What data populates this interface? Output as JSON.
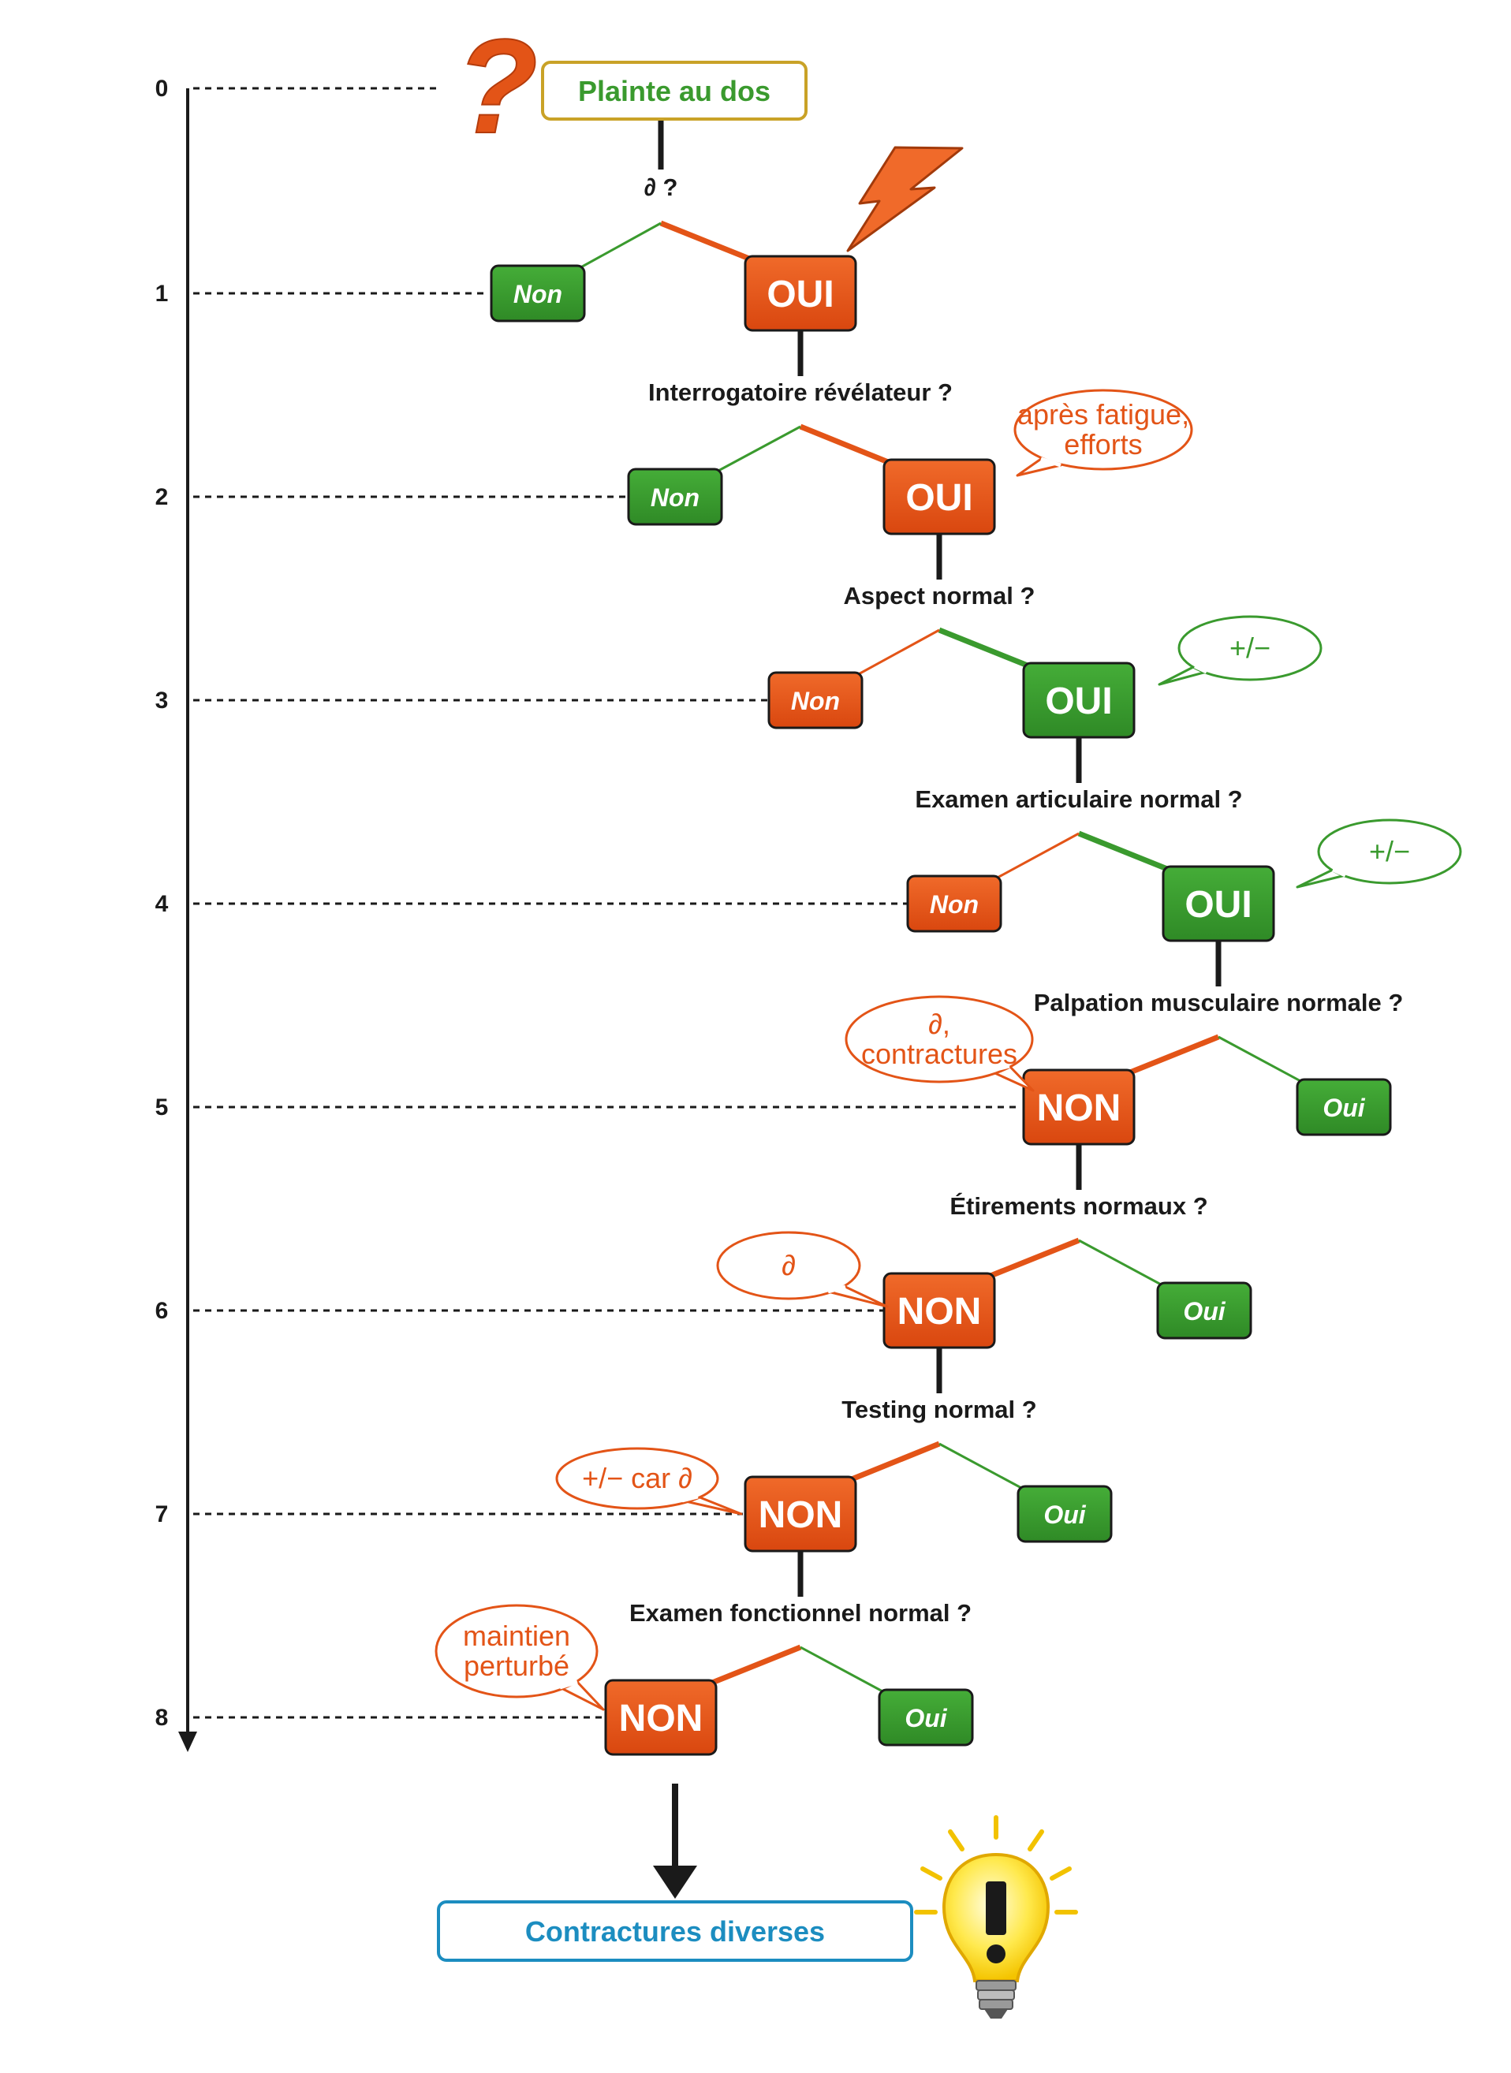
{
  "colors": {
    "orange": "#e35417",
    "green": "#3a9a2e",
    "start_border": "#c9a227",
    "end_border": "#1c8dc0",
    "dark": "#1a1a1a"
  },
  "start_label": "Plainte au dos",
  "end_label": "Contractures diverses",
  "question_mark": "?",
  "levels": [
    "0",
    "1",
    "2",
    "3",
    "4",
    "5",
    "6",
    "7",
    "8"
  ],
  "questions": [
    "∂ ?",
    "Interrogatoire révélateur ?",
    "Aspect normal ?",
    "Examen articulaire normal ?",
    "Palpation musculaire normale ?",
    "Étirements normaux ?",
    "Testing normal ?",
    "Examen fonctionnel normal ?"
  ],
  "decisions": [
    {
      "level": "1",
      "big": "OUI",
      "big_color": "orange",
      "small": "Non",
      "small_color": "green"
    },
    {
      "level": "2",
      "big": "OUI",
      "big_color": "orange",
      "small": "Non",
      "small_color": "green"
    },
    {
      "level": "3",
      "big": "OUI",
      "big_color": "green",
      "small": "Non",
      "small_color": "orange"
    },
    {
      "level": "4",
      "big": "OUI",
      "big_color": "green",
      "small": "Non",
      "small_color": "orange"
    },
    {
      "level": "5",
      "big": "NON",
      "big_color": "orange",
      "small": "Oui",
      "small_color": "green"
    },
    {
      "level": "6",
      "big": "NON",
      "big_color": "orange",
      "small": "Oui",
      "small_color": "green"
    },
    {
      "level": "7",
      "big": "NON",
      "big_color": "orange",
      "small": "Oui",
      "small_color": "green"
    },
    {
      "level": "8",
      "big": "NON",
      "big_color": "orange",
      "small": "Oui",
      "small_color": "green"
    }
  ],
  "bubbles": [
    {
      "lines": [
        "après fatigue,",
        "efforts"
      ],
      "color": "orange"
    },
    {
      "lines": [
        "+/−"
      ],
      "color": "green"
    },
    {
      "lines": [
        "+/−"
      ],
      "color": "green"
    },
    {
      "lines": [
        "∂,",
        "contractures"
      ],
      "color": "orange"
    },
    {
      "lines": [
        "∂"
      ],
      "color": "orange"
    },
    {
      "lines": [
        "+/− car ∂"
      ],
      "color": "orange"
    },
    {
      "lines": [
        "maintien",
        "perturbé"
      ],
      "color": "orange"
    }
  ]
}
